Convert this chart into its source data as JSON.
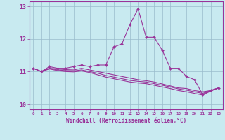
{
  "xlabel": "Windchill (Refroidissement éolien,°C)",
  "bg_color": "#c8eaf0",
  "line_color": "#993399",
  "grid_color": "#99bbcc",
  "x_values": [
    0,
    1,
    2,
    3,
    4,
    5,
    6,
    7,
    8,
    9,
    10,
    11,
    12,
    13,
    14,
    15,
    16,
    17,
    18,
    19,
    20,
    21,
    22,
    23
  ],
  "series1": [
    11.1,
    11.0,
    11.15,
    11.1,
    11.1,
    11.15,
    11.2,
    11.15,
    11.2,
    11.2,
    11.75,
    11.85,
    12.45,
    12.92,
    12.05,
    12.05,
    11.65,
    11.1,
    11.1,
    10.85,
    10.75,
    10.3,
    10.42,
    10.5
  ],
  "series2": [
    11.1,
    11.0,
    11.1,
    11.08,
    11.06,
    11.05,
    11.1,
    11.05,
    11.0,
    10.95,
    10.9,
    10.85,
    10.8,
    10.75,
    10.72,
    10.68,
    10.62,
    10.56,
    10.5,
    10.48,
    10.42,
    10.38,
    10.42,
    10.5
  ],
  "series3": [
    11.1,
    11.0,
    11.1,
    11.05,
    11.03,
    11.02,
    11.05,
    11.0,
    10.95,
    10.88,
    10.83,
    10.78,
    10.73,
    10.7,
    10.68,
    10.63,
    10.58,
    10.53,
    10.47,
    10.43,
    10.38,
    10.33,
    10.42,
    10.5
  ],
  "series4": [
    11.1,
    11.0,
    11.08,
    11.03,
    11.0,
    10.99,
    11.02,
    10.97,
    10.9,
    10.83,
    10.78,
    10.73,
    10.68,
    10.65,
    10.63,
    10.58,
    10.53,
    10.48,
    10.42,
    10.38,
    10.33,
    10.28,
    10.4,
    10.5
  ],
  "ylim": [
    9.85,
    13.15
  ],
  "yticks": [
    10,
    11,
    12,
    13
  ],
  "xlim": [
    -0.5,
    23.5
  ]
}
